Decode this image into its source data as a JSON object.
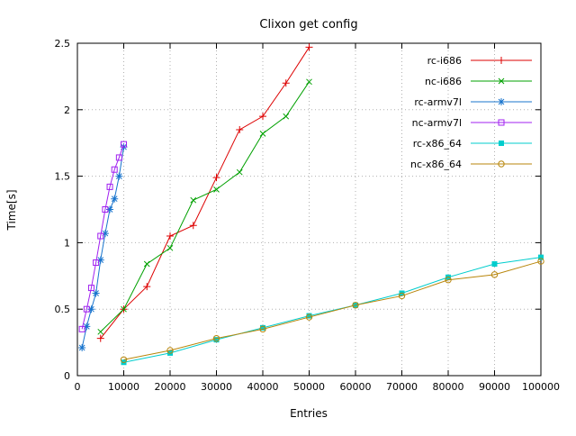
{
  "title": "Clixon get config",
  "chart_data": {
    "type": "line",
    "title": "Clixon get config",
    "xlabel": "Entries",
    "ylabel": "Time[s]",
    "xlim": [
      0,
      100000
    ],
    "ylim": [
      0,
      2.5
    ],
    "xticks": [
      0,
      10000,
      20000,
      30000,
      40000,
      50000,
      60000,
      70000,
      80000,
      90000,
      100000
    ],
    "yticks": [
      0,
      0.5,
      1,
      1.5,
      2,
      2.5
    ],
    "grid": true,
    "legend_position": "top-right",
    "series": [
      {
        "name": "rc-i686",
        "color": "#dd0000",
        "marker": "plus",
        "x": [
          5000,
          10000,
          15000,
          20000,
          25000,
          30000,
          35000,
          40000,
          45000,
          50000
        ],
        "y": [
          0.28,
          0.5,
          0.67,
          1.05,
          1.13,
          1.49,
          1.85,
          1.95,
          2.2,
          2.47
        ]
      },
      {
        "name": "nc-i686",
        "color": "#00a000",
        "marker": "cross",
        "x": [
          5000,
          10000,
          15000,
          20000,
          25000,
          30000,
          35000,
          40000,
          45000,
          50000
        ],
        "y": [
          0.33,
          0.5,
          0.84,
          0.96,
          1.32,
          1.4,
          1.53,
          1.82,
          1.95,
          2.21
        ]
      },
      {
        "name": "rc-armv7l",
        "color": "#1874cd",
        "marker": "asterisk",
        "x": [
          1000,
          2000,
          3000,
          4000,
          5000,
          6000,
          7000,
          8000,
          9000,
          10000
        ],
        "y": [
          0.21,
          0.37,
          0.5,
          0.62,
          0.87,
          1.07,
          1.25,
          1.33,
          1.5,
          1.72
        ]
      },
      {
        "name": "nc-armv7l",
        "color": "#a020f0",
        "marker": "square-open",
        "x": [
          1000,
          2000,
          3000,
          4000,
          5000,
          6000,
          7000,
          8000,
          9000,
          10000
        ],
        "y": [
          0.35,
          0.5,
          0.66,
          0.85,
          1.05,
          1.25,
          1.42,
          1.55,
          1.64,
          1.74
        ]
      },
      {
        "name": "rc-x86_64",
        "color": "#00cdcd",
        "marker": "square-filled",
        "x": [
          10000,
          20000,
          30000,
          40000,
          50000,
          60000,
          70000,
          80000,
          90000,
          100000
        ],
        "y": [
          0.1,
          0.17,
          0.27,
          0.36,
          0.45,
          0.53,
          0.62,
          0.74,
          0.84,
          0.89
        ]
      },
      {
        "name": "nc-x86_64",
        "color": "#b8860b",
        "marker": "circle-open",
        "x": [
          10000,
          20000,
          30000,
          40000,
          50000,
          60000,
          70000,
          80000,
          90000,
          100000
        ],
        "y": [
          0.12,
          0.19,
          0.28,
          0.35,
          0.44,
          0.53,
          0.6,
          0.72,
          0.76,
          0.86
        ]
      }
    ]
  }
}
